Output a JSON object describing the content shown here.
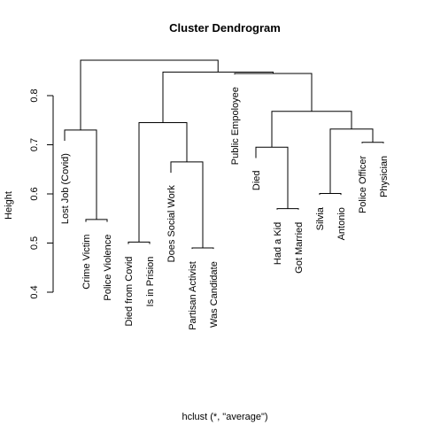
{
  "chart_data": {
    "type": "dendrogram",
    "title": "Cluster Dendrogram",
    "xlabel": "hclust (*, \"average\")",
    "ylabel": "Height",
    "ylim": [
      0.4,
      0.875
    ],
    "yticks": [
      0.4,
      0.5,
      0.6,
      0.7,
      0.8
    ],
    "ytick_labels": [
      "0.4",
      "0.5",
      "0.6",
      "0.7",
      "0.8"
    ],
    "leaves": [
      {
        "label": "Lost Job (Covid)",
        "height": 0.69
      },
      {
        "label": "Crime Victim",
        "height": 0.525
      },
      {
        "label": "Police Violence",
        "height": 0.525
      },
      {
        "label": "Died from Covid",
        "height": 0.48
      },
      {
        "label": "Is in Prision",
        "height": 0.48
      },
      {
        "label": "Does Social Work",
        "height": 0.625
      },
      {
        "label": "Partisan Activist",
        "height": 0.47
      },
      {
        "label": "Was Candidate",
        "height": 0.47
      },
      {
        "label": "Public Empoloyee",
        "height": 0.825
      },
      {
        "label": "Died",
        "height": 0.655
      },
      {
        "label": "Had a Kid",
        "height": 0.55
      },
      {
        "label": "Got Married",
        "height": 0.55
      },
      {
        "label": "Silvia",
        "height": 0.58
      },
      {
        "label": "Antonio",
        "height": 0.58
      },
      {
        "label": "Police Officer",
        "height": 0.685
      },
      {
        "label": "Physician",
        "height": 0.685
      }
    ],
    "merges": [
      {
        "left": "L2",
        "right": "L3",
        "height": 0.548
      },
      {
        "left": "L1",
        "right": "M1",
        "height": 0.73
      },
      {
        "left": "L4",
        "right": "L5",
        "height": 0.502
      },
      {
        "left": "L7",
        "right": "L8",
        "height": 0.49
      },
      {
        "left": "L6",
        "right": "M4",
        "height": 0.665
      },
      {
        "left": "M3",
        "right": "M5",
        "height": 0.745
      },
      {
        "left": "L11",
        "right": "L12",
        "height": 0.57
      },
      {
        "left": "L10",
        "right": "M7",
        "height": 0.695
      },
      {
        "left": "L13",
        "right": "L14",
        "height": 0.601
      },
      {
        "left": "L15",
        "right": "L16",
        "height": 0.705
      },
      {
        "left": "M9",
        "right": "M10",
        "height": 0.732
      },
      {
        "left": "M8",
        "right": "M11",
        "height": 0.768
      },
      {
        "left": "L9",
        "right": "M12",
        "height": 0.845
      },
      {
        "left": "M6",
        "right": "M13",
        "height": 0.848
      },
      {
        "left": "M2",
        "right": "M14",
        "height": 0.872
      }
    ]
  }
}
